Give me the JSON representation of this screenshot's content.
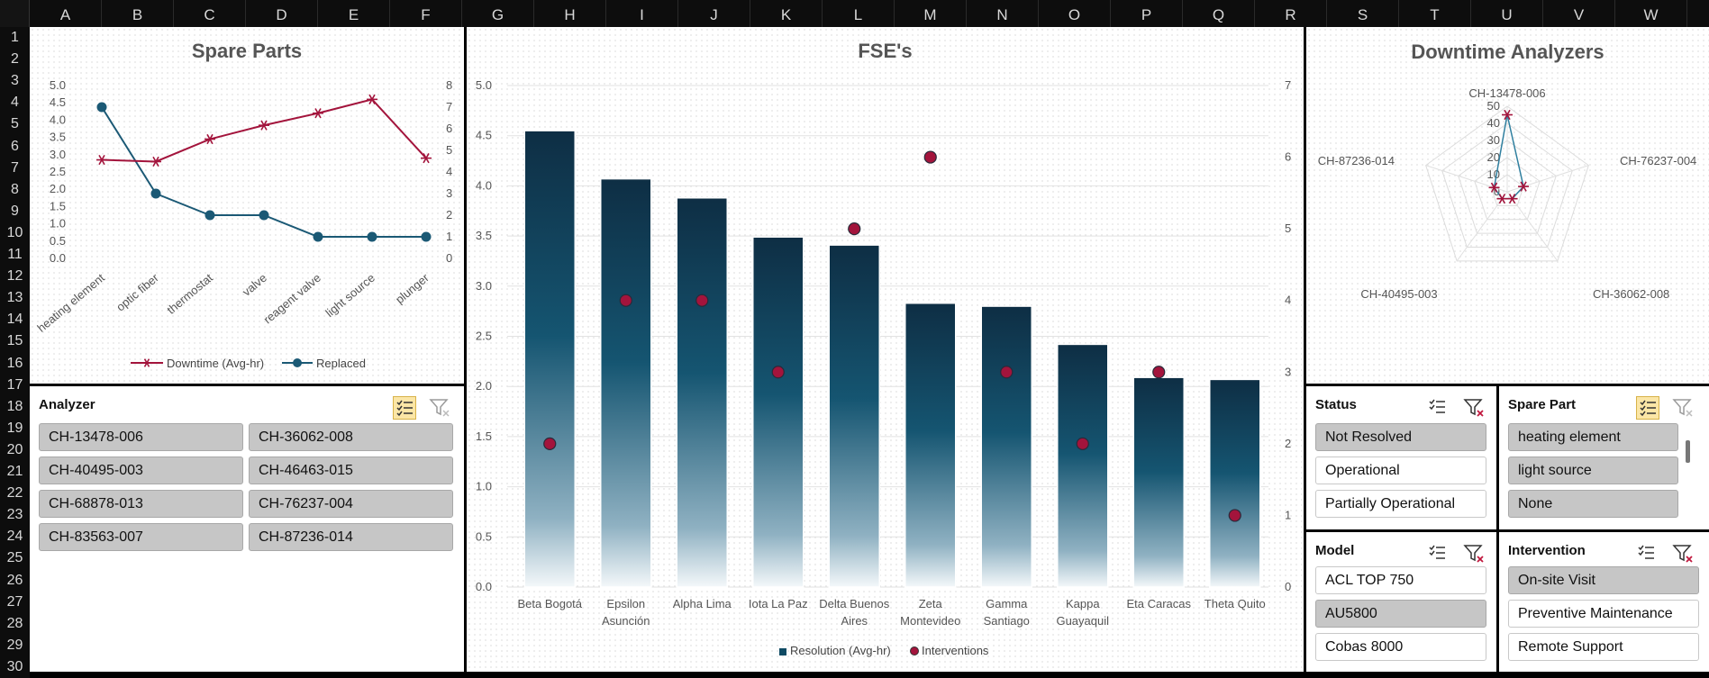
{
  "columns": [
    "A",
    "B",
    "C",
    "D",
    "E",
    "F",
    "G",
    "H",
    "I",
    "J",
    "K",
    "L",
    "M",
    "N",
    "O",
    "P",
    "Q",
    "R",
    "S",
    "T",
    "U",
    "V",
    "W"
  ],
  "rows": [
    "1",
    "2",
    "3",
    "4",
    "5",
    "6",
    "7",
    "8",
    "9",
    "10",
    "11",
    "12",
    "13",
    "14",
    "15",
    "16",
    "17",
    "18",
    "19",
    "20",
    "21",
    "22",
    "23",
    "24",
    "25",
    "26",
    "27",
    "28",
    "29",
    "30"
  ],
  "spare_parts": {
    "title": "Spare Parts",
    "chart_data": {
      "type": "line",
      "title": "Spare Parts",
      "categories": [
        "heating element",
        "optic fiber",
        "thermostat",
        "valve",
        "reagent valve",
        "light source",
        "plunger"
      ],
      "series": [
        {
          "name": "Downtime (Avg-hr)",
          "axis": "left",
          "color": "#a3143c",
          "values": [
            2.85,
            2.8,
            3.45,
            3.85,
            4.2,
            4.6,
            2.9
          ]
        },
        {
          "name": "Replaced",
          "axis": "right",
          "color": "#1b5975",
          "values": [
            7,
            3,
            2,
            2,
            1,
            1,
            1
          ]
        }
      ],
      "y_left": {
        "min": 0,
        "max": 5,
        "ticks": [
          "0.0",
          "0.5",
          "1.0",
          "1.5",
          "2.0",
          "2.5",
          "3.0",
          "3.5",
          "4.0",
          "4.5",
          "5.0"
        ]
      },
      "y_right": {
        "min": 0,
        "max": 8,
        "ticks": [
          "0",
          "1",
          "2",
          "3",
          "4",
          "5",
          "6",
          "7",
          "8"
        ]
      },
      "legend": "bottom"
    }
  },
  "fse": {
    "title": "FSE's",
    "chart_data": {
      "type": "bar",
      "title": "FSE's",
      "categories": [
        "Beta Bogotá",
        "Epsilon Asunción",
        "Alpha Lima",
        "Iota La Paz",
        "Delta Buenos Aires",
        "Zeta Montevideo",
        "Gamma Santiago",
        "Kappa Guayaquil",
        "Eta Caracas",
        "Theta Quito"
      ],
      "category_lines": [
        [
          "Beta Bogotá"
        ],
        [
          "Epsilon",
          "Asunción"
        ],
        [
          "Alpha Lima"
        ],
        [
          "Iota La Paz"
        ],
        [
          "Delta Buenos",
          "Aires"
        ],
        [
          "Zeta",
          "Montevideo"
        ],
        [
          "Gamma",
          "Santiago"
        ],
        [
          "Kappa",
          "Guayaquil"
        ],
        [
          "Eta Caracas"
        ],
        [
          "Theta Quito"
        ]
      ],
      "series": [
        {
          "name": "Resolution (Avg-hr)",
          "type": "bar",
          "axis": "left",
          "color": "#0e4a63",
          "values": [
            4.55,
            4.07,
            3.88,
            3.49,
            3.41,
            2.83,
            2.8,
            2.42,
            2.09,
            2.07
          ]
        },
        {
          "name": "Interventions",
          "type": "scatter",
          "axis": "right",
          "color": "#a3143c",
          "values": [
            2,
            4,
            4,
            3,
            5,
            6,
            3,
            2,
            3,
            1
          ]
        }
      ],
      "y_left": {
        "min": 0,
        "max": 5,
        "ticks": [
          "0.0",
          "0.5",
          "1.0",
          "1.5",
          "2.0",
          "2.5",
          "3.0",
          "3.5",
          "4.0",
          "4.5",
          "5.0"
        ]
      },
      "y_right": {
        "min": 0,
        "max": 7,
        "ticks": [
          "0",
          "1",
          "2",
          "3",
          "4",
          "5",
          "6",
          "7"
        ]
      },
      "legend": "bottom"
    }
  },
  "downtime": {
    "title": "Downtime Analyzers",
    "chart_data": {
      "type": "radar",
      "title": "Downtime Analyzers",
      "categories": [
        "CH-13478-006",
        "CH-76237-004",
        "CH-36062-008",
        "CH-40495-003",
        "CH-87236-014"
      ],
      "series": [
        {
          "color": "#a3143c",
          "line_color": "#2f7f9f",
          "values": [
            45,
            10,
            5,
            5,
            8
          ]
        }
      ],
      "r_range": [
        0,
        50
      ],
      "r_ticks": [
        "0",
        "10",
        "20",
        "30",
        "40",
        "50"
      ]
    }
  },
  "analyzer_slicer": {
    "title": "Analyzer",
    "items": [
      {
        "label": "CH-13478-006",
        "selected": true
      },
      {
        "label": "CH-36062-008",
        "selected": true
      },
      {
        "label": "CH-40495-003",
        "selected": true
      },
      {
        "label": "CH-46463-015",
        "selected": true
      },
      {
        "label": "CH-68878-013",
        "selected": true
      },
      {
        "label": "CH-76237-004",
        "selected": true
      },
      {
        "label": "CH-83563-007",
        "selected": true
      },
      {
        "label": "CH-87236-014",
        "selected": true
      }
    ]
  },
  "status_slicer": {
    "title": "Status",
    "items": [
      {
        "label": "Not Resolved",
        "selected": true
      },
      {
        "label": "Operational",
        "selected": false
      },
      {
        "label": "Partially Operational",
        "selected": false
      }
    ]
  },
  "spare_part_slicer": {
    "title": "Spare Part",
    "items": [
      {
        "label": "heating element",
        "selected": true
      },
      {
        "label": "light source",
        "selected": true
      },
      {
        "label": "None",
        "selected": true
      }
    ]
  },
  "model_slicer": {
    "title": "Model",
    "items": [
      {
        "label": "ACL TOP 750",
        "selected": false
      },
      {
        "label": "AU5800",
        "selected": true
      },
      {
        "label": "Cobas 8000",
        "selected": false
      }
    ]
  },
  "intervention_slicer": {
    "title": "Intervention",
    "items": [
      {
        "label": "On-site Visit",
        "selected": true
      },
      {
        "label": "Preventive Maintenance",
        "selected": false
      },
      {
        "label": "Remote Support",
        "selected": false
      }
    ]
  }
}
